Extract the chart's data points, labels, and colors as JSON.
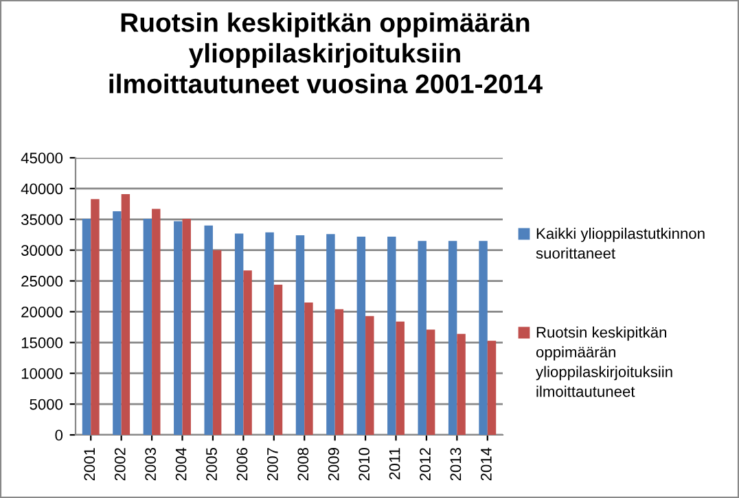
{
  "chart_data": {
    "type": "bar",
    "title": "Ruotsin keskipitkän oppimäärän ylioppilaskirjoituksiin ilmoittautuneet vuosina 2001-2014",
    "categories": [
      "2001",
      "2002",
      "2003",
      "2004",
      "2005",
      "2006",
      "2007",
      "2008",
      "2009",
      "2010",
      "2011",
      "2012",
      "2013",
      "2014"
    ],
    "series": [
      {
        "name": "Kaikki ylioppilastutkinnon suorittaneet",
        "color": "#4f81bd",
        "values": [
          35100,
          36300,
          35100,
          34700,
          34000,
          32700,
          32900,
          32400,
          32600,
          32200,
          32200,
          31500,
          31500,
          31500
        ]
      },
      {
        "name": "Ruotsin keskipitkän oppimäärän ylioppilaskirjoituksiin ilmoittautuneet",
        "color": "#c0504d",
        "values": [
          38300,
          39100,
          36700,
          35100,
          30000,
          26700,
          24400,
          21500,
          20400,
          19300,
          18400,
          17100,
          16400,
          15300
        ]
      }
    ],
    "ylim": [
      0,
      45000
    ],
    "yticks": [
      0,
      5000,
      10000,
      15000,
      20000,
      25000,
      30000,
      35000,
      40000,
      45000
    ],
    "grid": "y",
    "legend": "right"
  }
}
